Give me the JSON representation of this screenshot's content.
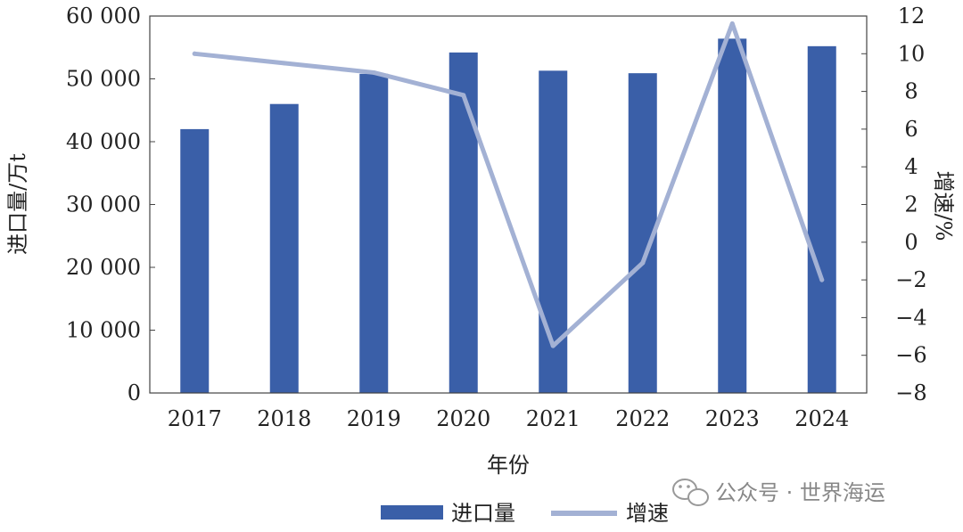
{
  "chart_data": {
    "type": "bar",
    "categories": [
      "2017",
      "2018",
      "2019",
      "2020",
      "2021",
      "2022",
      "2023",
      "2024"
    ],
    "series": [
      {
        "name": "进口量",
        "type": "bar",
        "axis": "left",
        "values": [
          42000,
          46000,
          50800,
          54200,
          51300,
          50900,
          56400,
          55200
        ]
      },
      {
        "name": "增速",
        "type": "line",
        "axis": "right",
        "values": [
          10.0,
          9.5,
          9.0,
          7.8,
          -5.5,
          -1.1,
          11.6,
          -2.0
        ]
      }
    ],
    "xlabel": "年份",
    "ylabel": "进口量/万t",
    "y2label": "增速/%",
    "ylim": [
      0,
      60000
    ],
    "y_ticks": [
      "0",
      "10 000",
      "20 000",
      "30 000",
      "40 000",
      "50 000",
      "60 000"
    ],
    "y2lim": [
      -8,
      12
    ],
    "y2_ticks": [
      "−8",
      "−6",
      "−4",
      "−2",
      "0",
      "2",
      "4",
      "6",
      "8",
      "10",
      "12"
    ],
    "legend_position": "bottom-center",
    "grid": false,
    "colors": {
      "bar": "#3a5fa8",
      "line": "#a3b1d4"
    }
  },
  "watermark": {
    "text": "公众号 · 世界海运",
    "icon": "wechat-icon"
  }
}
